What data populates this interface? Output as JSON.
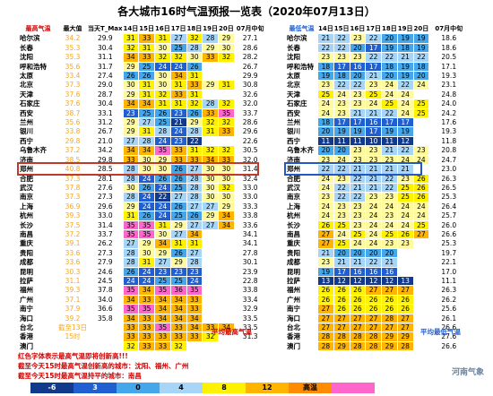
{
  "title": "各大城市16时气温预报一览表（2020年07月13日）",
  "hdr_left": [
    "最高气温",
    "最大值",
    "当天T_Max",
    "14日",
    "15日",
    "16日",
    "17日",
    "18日",
    "19日",
    "20日",
    "",
    "07月中旬"
  ],
  "hdr_right": [
    "最低气温",
    "14日",
    "15日",
    "16日",
    "17日",
    "18日",
    "19日",
    "20日",
    "",
    "07月中旬"
  ],
  "left_rows": [
    [
      "哈尔滨",
      "34.2",
      "29.9",
      "31",
      "33",
      "31",
      "27",
      "32",
      "28",
      "29",
      "",
      "27.1"
    ],
    [
      "长春",
      "35.3",
      "30.4",
      "32",
      "31",
      "30",
      "25",
      "28",
      "29",
      "30",
      "",
      "28.6"
    ],
    [
      "沈阳",
      "35.3",
      "31.1",
      "34",
      "33",
      "32",
      "32",
      "30",
      "33",
      "32",
      "",
      "28.2"
    ],
    [
      "呼和浩特",
      "35.6",
      "31.7",
      "29",
      "25",
      "24",
      "24",
      "26",
      "",
      "",
      "",
      "26.7"
    ],
    [
      "太原",
      "33.4",
      "27.4",
      "26",
      "26",
      "30",
      "34",
      "31",
      "",
      "",
      "",
      "29.9"
    ],
    [
      "北京",
      "37.3",
      "29.0",
      "30",
      "31",
      "30",
      "31",
      "33",
      "29",
      "31",
      "",
      "30.8"
    ],
    [
      "天津",
      "37.6",
      "28.7",
      "29",
      "31",
      "32",
      "33",
      "31",
      "",
      "",
      "",
      "32.6"
    ],
    [
      "石家庄",
      "37.6",
      "30.4",
      "34",
      "34",
      "31",
      "31",
      "32",
      "28",
      "32",
      "",
      "32.0"
    ],
    [
      "西安",
      "38.7",
      "33.1",
      "23",
      "25",
      "26",
      "23",
      "26",
      "33",
      "35",
      "",
      "33.7"
    ],
    [
      "兰州",
      "35.6",
      "31.2",
      "29",
      "27",
      "25",
      "21",
      "29",
      "32",
      "32",
      "",
      "28.6"
    ],
    [
      "银川",
      "33.8",
      "26.7",
      "29",
      "31",
      "28",
      "24",
      "28",
      "31",
      "33",
      "",
      "29.6"
    ],
    [
      "西宁",
      "29.8",
      "21.0",
      "27",
      "28",
      "24",
      "23",
      "22",
      "",
      "",
      "",
      "22.6"
    ],
    [
      "乌鲁木齐",
      "37.2",
      "34.2",
      "34",
      "34",
      "35",
      "33",
      "31",
      "32",
      "32",
      "",
      "30.5"
    ],
    [
      "济南",
      "38.5",
      "29.8",
      "33",
      "30",
      "29",
      "33",
      "33",
      "34",
      "33",
      "",
      "32.0"
    ],
    [
      "郑州",
      "40.8",
      "28.5",
      "28",
      "30",
      "30",
      "26",
      "27",
      "30",
      "30",
      "",
      "31.4"
    ],
    [
      "合肥",
      "37.3",
      "28.1",
      "28",
      "24",
      "26",
      "26",
      "28",
      "30",
      "30",
      "",
      "32.4"
    ],
    [
      "武汉",
      "37.8",
      "27.6",
      "30",
      "26",
      "24",
      "25",
      "28",
      "30",
      "32",
      "",
      "33.0"
    ],
    [
      "南京",
      "37.3",
      "27.3",
      "28",
      "24",
      "22",
      "27",
      "28",
      "30",
      "30",
      "",
      "33.0"
    ],
    [
      "上海",
      "36.9",
      "29.6",
      "29",
      "24",
      "24",
      "26",
      "27",
      "27",
      "29",
      "",
      "33.3"
    ],
    [
      "杭州",
      "39.3",
      "33.0",
      "31",
      "26",
      "24",
      "25",
      "26",
      "29",
      "34",
      "",
      "33.8"
    ],
    [
      "长沙",
      "37.5",
      "31.4",
      "35",
      "35",
      "31",
      "29",
      "27",
      "27",
      "34",
      "",
      "33.6"
    ],
    [
      "南昌",
      "37.2",
      "33.7",
      "35",
      "35",
      "30",
      "27",
      "34",
      "",
      "",
      "",
      "34.1"
    ],
    [
      "重庆",
      "39.1",
      "26.2",
      "27",
      "29",
      "34",
      "31",
      "31",
      "",
      "",
      "",
      "34.1"
    ],
    [
      "贵阳",
      "33.6",
      "27.3",
      "28",
      "30",
      "29",
      "26",
      "27",
      "",
      "",
      "",
      "27.8"
    ],
    [
      "成都",
      "33.6",
      "27.9",
      "28",
      "31",
      "27",
      "29",
      "28",
      "",
      "",
      "",
      "30.1"
    ],
    [
      "昆明",
      "30.3",
      "24.6",
      "26",
      "24",
      "23",
      "23",
      "23",
      "",
      "",
      "",
      "23.9"
    ],
    [
      "拉萨",
      "31.1",
      "24.5",
      "24",
      "24",
      "25",
      "25",
      "24",
      "",
      "",
      "",
      "22.8"
    ],
    [
      "福州",
      "39.3",
      "37.8",
      "35",
      "34",
      "35",
      "36",
      "35",
      "",
      "",
      "",
      "33.8"
    ],
    [
      "广州",
      "37.1",
      "34.0",
      "34",
      "33",
      "34",
      "34",
      "33",
      "",
      "",
      "",
      "33.4"
    ],
    [
      "南宁",
      "37.9",
      "36.6",
      "35",
      "35",
      "34",
      "34",
      "33",
      "",
      "",
      "",
      "32.9"
    ],
    [
      "海口",
      "39.2",
      "35.8",
      "34",
      "33",
      "34",
      "34",
      "34",
      "",
      "",
      "",
      "33.5"
    ],
    [
      "台北",
      "截至13日",
      "",
      "33",
      "33",
      "35",
      "33",
      "34",
      "33",
      "34",
      "",
      "33.5"
    ],
    [
      "香港",
      "15时",
      "",
      "33",
      "33",
      "33",
      "33",
      "33",
      "32",
      "",
      "",
      "31.3"
    ],
    [
      "澳门",
      "",
      "",
      "32",
      "33",
      "33",
      "32",
      "",
      "",
      "",
      "",
      ""
    ]
  ],
  "right_rows": [
    [
      "哈尔滨",
      "21",
      "22",
      "23",
      "22",
      "20",
      "19",
      "19",
      "",
      "18.6"
    ],
    [
      "长春",
      "22",
      "22",
      "20",
      "17",
      "19",
      "18",
      "19",
      "",
      "18.6"
    ],
    [
      "沈阳",
      "23",
      "23",
      "23",
      "22",
      "22",
      "21",
      "22",
      "",
      "20.5"
    ],
    [
      "呼和浩特",
      "18",
      "17",
      "16",
      "17",
      "18",
      "19",
      "18",
      "",
      "17.1"
    ],
    [
      "太原",
      "19",
      "18",
      "20",
      "21",
      "20",
      "19",
      "20",
      "",
      "19.3"
    ],
    [
      "北京",
      "23",
      "22",
      "22",
      "23",
      "24",
      "22",
      "24",
      "",
      "23.1"
    ],
    [
      "天津",
      "25",
      "24",
      "23",
      "25",
      "24",
      "24",
      "",
      "",
      "24.8"
    ],
    [
      "石家庄",
      "24",
      "23",
      "23",
      "24",
      "25",
      "24",
      "25",
      "",
      "24.0"
    ],
    [
      "西安",
      "24",
      "23",
      "21",
      "21",
      "22",
      "24",
      "25",
      "",
      "24.2"
    ],
    [
      "兰州",
      "18",
      "17",
      "17",
      "16",
      "17",
      "17",
      "",
      "",
      "17.6"
    ],
    [
      "银川",
      "20",
      "19",
      "19",
      "17",
      "19",
      "19",
      "",
      "",
      "19.3"
    ],
    [
      "西宁",
      "11",
      "11",
      "11",
      "10",
      "11",
      "12",
      "",
      "",
      "11.8"
    ],
    [
      "乌鲁木齐",
      "20",
      "20",
      "23",
      "23",
      "21",
      "22",
      "23",
      "",
      "20.8"
    ],
    [
      "济南",
      "23",
      "24",
      "23",
      "23",
      "23",
      "24",
      "24",
      "",
      "24.7"
    ],
    [
      "郑州",
      "22",
      "22",
      "21",
      "21",
      "21",
      "21",
      "",
      "",
      "23.0"
    ],
    [
      "合肥",
      "24",
      "23",
      "22",
      "21",
      "22",
      "23",
      "26",
      "",
      "26.3"
    ],
    [
      "武汉",
      "24",
      "22",
      "21",
      "21",
      "22",
      "25",
      "26",
      "",
      "26.5"
    ],
    [
      "南京",
      "23",
      "22",
      "22",
      "23",
      "23",
      "25",
      "26",
      "",
      "25.3"
    ],
    [
      "上海",
      "24",
      "23",
      "23",
      "24",
      "24",
      "24",
      "24",
      "",
      "26.4"
    ],
    [
      "杭州",
      "24",
      "23",
      "23",
      "24",
      "23",
      "24",
      "24",
      "",
      "25.7"
    ],
    [
      "长沙",
      "26",
      "25",
      "23",
      "24",
      "24",
      "24",
      "25",
      "",
      "26.0"
    ],
    [
      "南昌",
      "27",
      "24",
      "25",
      "24",
      "25",
      "26",
      "27",
      "",
      "26.6"
    ],
    [
      "重庆",
      "27",
      "25",
      "24",
      "24",
      "23",
      "23",
      "",
      "",
      "25.3"
    ],
    [
      "贵阳",
      "21",
      "20",
      "20",
      "20",
      "20",
      "",
      "",
      "",
      "19.7"
    ],
    [
      "成都",
      "23",
      "21",
      "21",
      "22",
      "21",
      "",
      "",
      "",
      "22.1"
    ],
    [
      "昆明",
      "19",
      "17",
      "16",
      "16",
      "16",
      "",
      "",
      "",
      "17.0"
    ],
    [
      "拉萨",
      "13",
      "12",
      "12",
      "12",
      "12",
      "13",
      "",
      "",
      "11.1"
    ],
    [
      "福州",
      "26",
      "26",
      "26",
      "27",
      "27",
      "27",
      "",
      "",
      "26.3"
    ],
    [
      "广州",
      "26",
      "26",
      "26",
      "26",
      "26",
      "26",
      "",
      "",
      "26.2"
    ],
    [
      "南宁",
      "27",
      "26",
      "26",
      "26",
      "26",
      "26",
      "",
      "",
      "25.6"
    ],
    [
      "海口",
      "27",
      "27",
      "27",
      "27",
      "28",
      "27",
      "",
      "",
      "26.1"
    ],
    [
      "台北",
      "27",
      "27",
      "27",
      "27",
      "27",
      "27",
      "",
      "",
      "26.6"
    ],
    [
      "香港",
      "28",
      "28",
      "28",
      "28",
      "29",
      "29",
      "",
      "",
      "27.6"
    ],
    [
      "澳门",
      "28",
      "29",
      "28",
      "28",
      "29",
      "28",
      "",
      "",
      "26.6"
    ]
  ],
  "note_left": "平均最高气温",
  "note_right": "平均最低气温",
  "footnote1": "红色字体表示最高气温即将创新高!!!",
  "footnote2": "截至今天15时最高气温创新高的城市：沈阳、福州、广州",
  "footnote3": "截至今天15时最高气温持平的城市：南昌",
  "legend": [
    "-6",
    "3",
    "0",
    "4",
    "8",
    "12",
    "高温"
  ],
  "logo": "河南气象",
  "colors": {
    "navy": "#123a8c",
    "blue": "#1f5fd1",
    "sky": "#44a7ec",
    "light": "#a6d5f7",
    "yellow": "#fff200",
    "gold": "#ffb400",
    "orange": "#ff8b00",
    "pink": "#ff66cc",
    "record": "#f5a623",
    "highlight_red": "#c0392b",
    "highlight_blue": "#2458c9"
  }
}
